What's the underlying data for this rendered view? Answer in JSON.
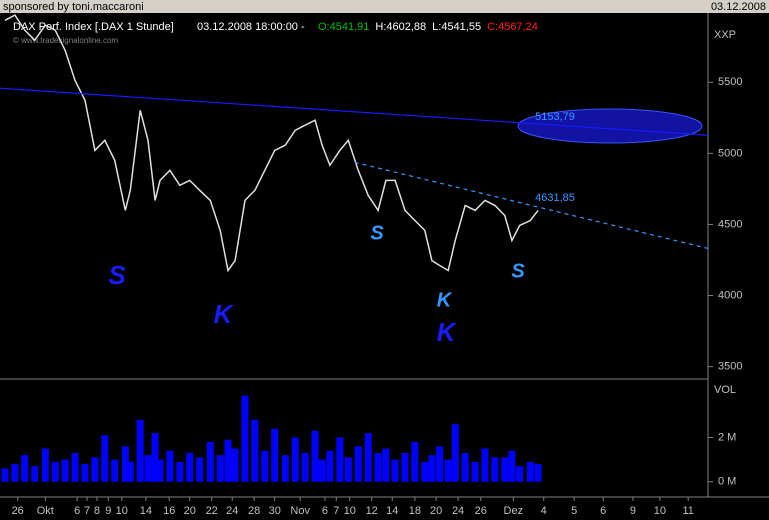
{
  "header": {
    "sponsor": "sponsored by toni.maccaroni",
    "date": "03.12.2008",
    "copyright": "© www.tradesignalonline.com"
  },
  "chart_data": [
    {
      "type": "line",
      "title": "DAX Perf. Index [.DAX  1 Stunde]",
      "timestamp": "03.12.2008 18:00:00 -",
      "ohlc": [
        {
          "value": 4541.91,
          "label": "O:4541,91",
          "color": "#00c000"
        },
        {
          "value": 4602.88,
          "label": "H:4602,88",
          "color": "#ffffff"
        },
        {
          "value": 4541.55,
          "label": "L:4541,55",
          "color": "#ffffff"
        },
        {
          "value": 4567.24,
          "label": "C:4567,24",
          "color": "#ff2020"
        }
      ],
      "y_label": "XXP",
      "color": "#e0e0e0",
      "x": [
        0.7,
        2.1,
        3.5,
        4.9,
        6.4,
        7.8,
        9.2,
        10.6,
        12.0,
        13.4,
        14.8,
        16.2,
        17.7,
        18.4,
        19.8,
        20.9,
        21.9,
        22.6,
        24.0,
        25.4,
        26.8,
        28.2,
        29.7,
        31.1,
        32.2,
        33.2,
        34.6,
        36.0,
        37.4,
        38.8,
        40.3,
        41.7,
        43.1,
        44.5,
        45.5,
        46.6,
        48.0,
        49.2,
        50.6,
        52.0,
        53.4,
        54.5,
        55.8,
        57.2,
        58.6,
        60.0,
        61.0,
        62.1,
        63.3,
        64.3,
        65.7,
        67.1,
        68.5,
        69.9,
        71.3,
        72.3,
        73.4,
        74.9,
        76.0
      ],
      "values": [
        5936,
        5972,
        5866,
        5796,
        5901,
        5866,
        5725,
        5514,
        5373,
        5021,
        5092,
        4951,
        4599,
        4740,
        5303,
        5092,
        4669,
        4810,
        4881,
        4775,
        4810,
        4740,
        4669,
        4458,
        4176,
        4246,
        4669,
        4740,
        4881,
        5021,
        5057,
        5162,
        5198,
        5233,
        5057,
        4916,
        5021,
        5092,
        4881,
        4704,
        4599,
        4810,
        4810,
        4599,
        4528,
        4458,
        4246,
        4211,
        4176,
        4387,
        4634,
        4599,
        4669,
        4634,
        4563,
        4387,
        4493,
        4528,
        4599
      ],
      "xlim": [
        0,
        100
      ],
      "ylim": [
        3420,
        5980
      ],
      "yticks": [
        3500,
        4000,
        4500,
        5000,
        5500
      ],
      "xticks": [
        {
          "value": 2.5,
          "label": "26"
        },
        {
          "value": 6.4,
          "label": "Okt"
        },
        {
          "value": 10.9,
          "label": "6"
        },
        {
          "value": 12.3,
          "label": "7"
        },
        {
          "value": 13.7,
          "label": "8"
        },
        {
          "value": 15.3,
          "label": "9"
        },
        {
          "value": 17.2,
          "label": "10"
        },
        {
          "value": 20.6,
          "label": "14"
        },
        {
          "value": 23.9,
          "label": "16"
        },
        {
          "value": 26.8,
          "label": "20"
        },
        {
          "value": 29.9,
          "label": "22"
        },
        {
          "value": 32.8,
          "label": "24"
        },
        {
          "value": 35.9,
          "label": "28"
        },
        {
          "value": 38.8,
          "label": "30"
        },
        {
          "value": 42.4,
          "label": "Nov"
        },
        {
          "value": 45.9,
          "label": "6"
        },
        {
          "value": 47.5,
          "label": "7"
        },
        {
          "value": 49.4,
          "label": "10"
        },
        {
          "value": 52.5,
          "label": "12"
        },
        {
          "value": 55.4,
          "label": "14"
        },
        {
          "value": 58.6,
          "label": "18"
        },
        {
          "value": 61.6,
          "label": "20"
        },
        {
          "value": 64.7,
          "label": "24"
        },
        {
          "value": 67.9,
          "label": "26"
        },
        {
          "value": 72.5,
          "label": "Dez"
        },
        {
          "value": 76.8,
          "label": "4"
        },
        {
          "value": 81.1,
          "label": "5"
        },
        {
          "value": 85.2,
          "label": "6"
        },
        {
          "value": 89.4,
          "label": "9"
        },
        {
          "value": 93.2,
          "label": "10"
        },
        {
          "value": 97.2,
          "label": "11"
        }
      ],
      "trendlines": [
        {
          "x": [
            0,
            100
          ],
          "values": [
            5458,
            5127
          ],
          "dashed": false,
          "color": "#1a1aff"
        },
        {
          "x": [
            50.1,
            100
          ],
          "values": [
            4937,
            4331
          ],
          "dashed": true,
          "color": "#3399ff"
        }
      ],
      "annotations": [
        {
          "text": "S",
          "color": "#1a1aff"
        },
        {
          "text": "K",
          "color": "#1a1aff"
        },
        {
          "text": "S",
          "color": "#3399ff"
        },
        {
          "text": "K",
          "color": "#3399ff"
        },
        {
          "text": "K",
          "color": "#1a1aff"
        },
        {
          "text": "S",
          "color": "#3399ff"
        },
        {
          "text": "4631,85",
          "color": "#3399ff"
        },
        {
          "text": "5153,79",
          "color": "#3399ff"
        }
      ]
    },
    {
      "type": "bar",
      "y_label": "VOL",
      "color": "#0000ff",
      "x": [
        0.7,
        2.1,
        3.5,
        4.9,
        6.4,
        7.8,
        9.2,
        10.6,
        12.0,
        13.4,
        14.8,
        16.2,
        17.7,
        18.4,
        19.8,
        20.9,
        21.9,
        22.6,
        24.0,
        25.4,
        26.8,
        28.2,
        29.7,
        31.1,
        32.2,
        33.2,
        34.6,
        36.0,
        37.4,
        38.8,
        40.3,
        41.7,
        43.1,
        44.5,
        45.5,
        46.6,
        48.0,
        49.2,
        50.6,
        52.0,
        53.4,
        54.5,
        55.8,
        57.2,
        58.6,
        60.0,
        61.0,
        62.1,
        63.3,
        64.3,
        65.7,
        67.1,
        68.5,
        69.9,
        71.3,
        72.3,
        73.4,
        74.9,
        76.0
      ],
      "values": [
        0.6,
        0.8,
        1.2,
        0.7,
        1.5,
        0.9,
        1.0,
        1.3,
        0.8,
        1.1,
        2.1,
        1.0,
        1.6,
        0.9,
        2.8,
        1.2,
        2.2,
        1.0,
        1.4,
        0.9,
        1.3,
        1.1,
        1.8,
        1.2,
        1.9,
        1.5,
        3.9,
        2.8,
        1.4,
        2.4,
        1.2,
        2.0,
        1.3,
        2.3,
        1.0,
        1.4,
        2.0,
        1.1,
        1.6,
        2.2,
        1.3,
        1.5,
        1.0,
        1.3,
        1.8,
        0.9,
        1.2,
        1.6,
        1.0,
        2.6,
        1.3,
        0.9,
        1.5,
        1.1,
        1.1,
        1.4,
        0.7,
        0.9,
        0.8
      ],
      "xlim": [
        0,
        100
      ],
      "ylim": [
        -0.6,
        4.6
      ],
      "yticks": [
        {
          "value": 2,
          "label": "2 M"
        },
        {
          "value": 0,
          "label": "0 M"
        }
      ]
    }
  ]
}
